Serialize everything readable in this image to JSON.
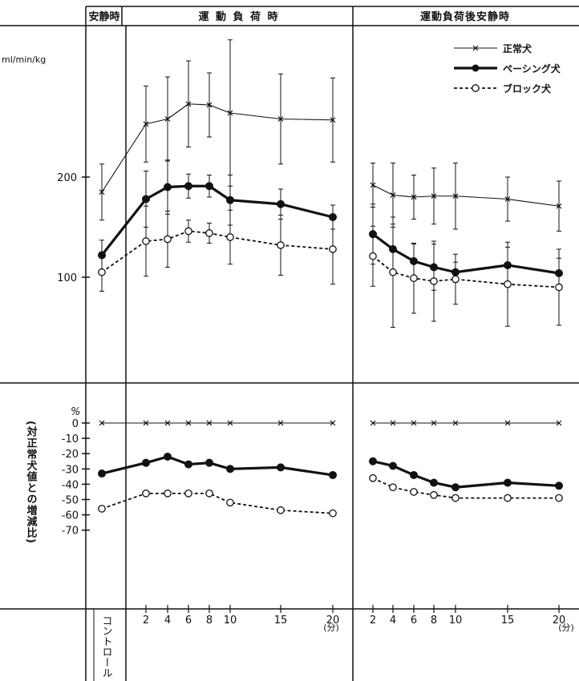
{
  "header": {
    "rest": "安静時",
    "exercise": "運 動 負 荷 時",
    "recovery": "運動負荷後安静時"
  },
  "units": {
    "top": "ml/min/kg",
    "bottom_percent": "%",
    "bottom_ylabel": "(対正常犬値との増減比)",
    "minutes": "(分)"
  },
  "x_axis": {
    "control_label": "コントロール",
    "exercise_ticks": [
      "2",
      "4",
      "6",
      "8",
      "10",
      "15",
      "20"
    ],
    "recovery_ticks": [
      "2",
      "4",
      "6",
      "8",
      "10",
      "15",
      "20"
    ]
  },
  "colors": {
    "ink": "#111111",
    "background": "#ffffff"
  },
  "chart_data": [
    {
      "type": "line",
      "panel": "top",
      "ylabel": "ml/min/kg",
      "y_ticks": [
        100,
        200
      ],
      "ylim": [
        -100,
        370
      ],
      "legend": {
        "placement": "top-right"
      },
      "x_control": "コントロール",
      "x_exercise": [
        2,
        4,
        6,
        8,
        10,
        15,
        20
      ],
      "x_recovery": [
        2,
        4,
        6,
        8,
        10,
        15,
        20
      ],
      "series": [
        {
          "name": "正常犬",
          "marker": "x",
          "line": "thin",
          "control": 185,
          "control_err": 28,
          "exercise": [
            253,
            258,
            273,
            272,
            264,
            258,
            257
          ],
          "exercise_err": [
            38,
            42,
            43,
            32,
            73,
            45,
            42
          ],
          "recovery": [
            192,
            182,
            180,
            181,
            181,
            178,
            171
          ],
          "recovery_err": [
            22,
            32,
            22,
            28,
            33,
            22,
            25
          ]
        },
        {
          "name": "ペーシング犬",
          "marker": "filled-circle",
          "line": "thick",
          "control": 122,
          "control_err": 15,
          "exercise": [
            178,
            190,
            191,
            191,
            177,
            173,
            160
          ],
          "exercise_err": [
            28,
            27,
            12,
            11,
            25,
            15,
            12
          ],
          "recovery": [
            143,
            128,
            116,
            110,
            105,
            112,
            104
          ],
          "recovery_err": [
            30,
            25,
            17,
            23,
            10,
            18,
            15
          ]
        },
        {
          "name": "ブロック犬",
          "marker": "open-circle",
          "line": "dashed",
          "control": 105,
          "control_err": 19,
          "exercise": [
            136,
            138,
            146,
            144,
            140,
            132,
            128
          ],
          "exercise_err": [
            35,
            28,
            11,
            10,
            27,
            30,
            35
          ],
          "recovery": [
            121,
            105,
            99,
            96,
            98,
            93,
            90
          ],
          "recovery_err": [
            30,
            55,
            35,
            40,
            25,
            42,
            38
          ]
        }
      ]
    },
    {
      "type": "line",
      "panel": "bottom",
      "ylabel": "(対正常犬値との増減比)",
      "y_unit": "%",
      "y_ticks": [
        0,
        -10,
        -20,
        -30,
        -40,
        -50,
        -60,
        -70
      ],
      "ylim": [
        -98,
        20
      ],
      "x_control": "コントロール",
      "x_exercise": [
        2,
        4,
        6,
        8,
        10,
        15,
        20
      ],
      "x_recovery": [
        2,
        4,
        6,
        8,
        10,
        15,
        20
      ],
      "series": [
        {
          "name": "正常犬",
          "marker": "x",
          "line": "thin",
          "control": 0,
          "exercise": [
            0,
            0,
            0,
            0,
            0,
            0,
            0
          ],
          "recovery": [
            0,
            0,
            0,
            0,
            0,
            0,
            0
          ]
        },
        {
          "name": "ペーシング犬",
          "marker": "filled-circle",
          "line": "thick",
          "control": -33,
          "exercise": [
            -26,
            -22,
            -27,
            -26,
            -30,
            -29,
            -34
          ],
          "recovery": [
            -25,
            -28,
            -34,
            -39,
            -42,
            -39,
            -41
          ]
        },
        {
          "name": "ブロック犬",
          "marker": "open-circle",
          "line": "dashed",
          "control": -56,
          "exercise": [
            -46,
            -46,
            -46,
            -46,
            -52,
            -57,
            -59
          ],
          "recovery": [
            -36,
            -42,
            -45,
            -47,
            -49,
            -49,
            -49
          ]
        }
      ]
    }
  ]
}
